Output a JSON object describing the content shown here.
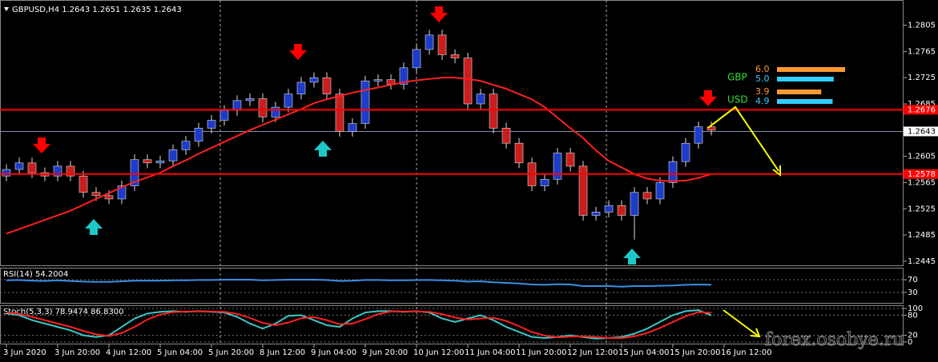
{
  "chart_data": [
    {
      "type": "candlestick",
      "title": "GBPUSD,H4  1.2643 1.2651 1.2635 1.2643",
      "categories": [
        "3 Jun 2020",
        null,
        null,
        null,
        "3 Jun 20:00",
        null,
        null,
        null,
        "4 Jun 12:00",
        null,
        null,
        null,
        "5 Jun 04:00",
        null,
        null,
        null,
        "5 Jun 20:00",
        null,
        null,
        null,
        "8 Jun 12:00",
        null,
        null,
        null,
        "9 Jun 04:00",
        null,
        null,
        null,
        "9 Jun 20:00",
        null,
        null,
        null,
        "10 Jun 12:00",
        null,
        null,
        null,
        "11 Jun 04:00",
        null,
        null,
        null,
        "11 Jun 20:00",
        null,
        null,
        null,
        "12 Jun 12:00",
        null,
        null,
        null,
        "15 Jun 04:00",
        null,
        null,
        null,
        "15 Jun 20:00",
        null,
        null,
        null,
        "16 Jun 12:00"
      ],
      "open": [
        1.2575,
        1.2585,
        1.2595,
        1.258,
        1.2575,
        1.259,
        1.2575,
        1.255,
        1.2545,
        1.254,
        1.256,
        1.26,
        1.2595,
        1.2598,
        1.2615,
        1.2628,
        1.2648,
        1.266,
        1.2675,
        1.269,
        1.2693,
        1.2665,
        1.268,
        1.27,
        1.2718,
        1.2725,
        1.27,
        1.2643,
        1.2655,
        1.272,
        1.2722,
        1.2715,
        1.274,
        1.2768,
        1.279,
        1.276,
        1.2755,
        1.2685,
        1.27,
        1.2648,
        1.2625,
        1.2595,
        1.256,
        1.257,
        1.261,
        1.259,
        1.2515,
        1.252,
        1.253,
        1.2515,
        1.255,
        1.254,
        1.2565,
        1.2597,
        1.2625,
        1.265,
        null
      ],
      "high": [
        1.2593,
        1.2603,
        1.2603,
        1.2588,
        1.2598,
        1.2598,
        1.2583,
        1.2558,
        1.2553,
        1.2568,
        1.2608,
        1.2608,
        1.2606,
        1.2623,
        1.2636,
        1.2656,
        1.2668,
        1.2683,
        1.2698,
        1.2701,
        1.2701,
        1.2688,
        1.2708,
        1.2726,
        1.2733,
        1.2733,
        1.2708,
        1.2663,
        1.2728,
        1.273,
        1.273,
        1.2748,
        1.2776,
        1.2798,
        1.2798,
        1.2768,
        1.2763,
        1.2708,
        1.2708,
        1.2656,
        1.2633,
        1.2603,
        1.2578,
        1.2618,
        1.2618,
        1.2598,
        1.2528,
        1.2538,
        1.2538,
        1.2558,
        1.2558,
        1.2573,
        1.2605,
        1.2633,
        1.2658,
        1.2658,
        null
      ],
      "low": [
        1.2567,
        1.2577,
        1.2572,
        1.2567,
        1.2567,
        1.2567,
        1.2542,
        1.2537,
        1.2532,
        1.2532,
        1.2552,
        1.2587,
        1.2587,
        1.259,
        1.2607,
        1.262,
        1.264,
        1.2652,
        1.2667,
        1.2682,
        1.2657,
        1.2657,
        1.2672,
        1.2692,
        1.271,
        1.2692,
        1.2635,
        1.2635,
        1.2647,
        1.2712,
        1.2707,
        1.2707,
        1.2732,
        1.276,
        1.2752,
        1.2747,
        1.2677,
        1.2677,
        1.264,
        1.2617,
        1.2587,
        1.2552,
        1.2552,
        1.2562,
        1.2582,
        1.2507,
        1.2507,
        1.2512,
        1.2507,
        1.2478,
        1.2532,
        1.2532,
        1.2557,
        1.2589,
        1.2617,
        1.2637,
        null
      ],
      "close": [
        1.2585,
        1.2595,
        1.258,
        1.2575,
        1.259,
        1.2575,
        1.255,
        1.2545,
        1.254,
        1.256,
        1.26,
        1.2595,
        1.2598,
        1.2615,
        1.2628,
        1.2648,
        1.266,
        1.2675,
        1.269,
        1.2693,
        1.2665,
        1.268,
        1.27,
        1.2718,
        1.2725,
        1.27,
        1.2643,
        1.2655,
        1.272,
        1.2722,
        1.2715,
        1.274,
        1.2768,
        1.279,
        1.276,
        1.2755,
        1.2685,
        1.27,
        1.2648,
        1.2625,
        1.2595,
        1.256,
        1.257,
        1.261,
        1.259,
        1.2515,
        1.252,
        1.253,
        1.2515,
        1.255,
        1.254,
        1.2565,
        1.2597,
        1.2625,
        1.265,
        1.2645,
        null
      ],
      "up_color": "#1e3cc8",
      "down_color": "#c81e1e",
      "lines": [
        {
          "color": "#ff2020",
          "values": [
            1.2487,
            1.2494,
            1.2501,
            1.2508,
            1.2515,
            1.2522,
            1.2531,
            1.254,
            1.2549,
            1.2558,
            1.2566,
            1.2573,
            1.258,
            1.259,
            1.2599,
            1.2609,
            1.2618,
            1.2627,
            1.2636,
            1.2645,
            1.2653,
            1.2661,
            1.2669,
            1.2677,
            1.2686,
            1.2692,
            1.2697,
            1.2702,
            1.2706,
            1.271,
            1.2714,
            1.2718,
            1.2721,
            1.2723,
            1.2725,
            1.2725,
            1.2723,
            1.272,
            1.2714,
            1.2708,
            1.27,
            1.2692,
            1.268,
            1.2664,
            1.2648,
            1.2633,
            1.2614,
            1.2598,
            1.2588,
            1.2578,
            1.2571,
            1.2568,
            1.2567,
            1.2568,
            1.2572,
            1.2578,
            null
          ]
        }
      ],
      "levels": [
        {
          "value": 1.2676,
          "label": "1.2676"
        },
        {
          "value": 1.2578,
          "label": "1.2578"
        }
      ],
      "level_color": "#ff0000",
      "current_price": {
        "value": 1.2643,
        "label": "1.2643"
      },
      "ylim": [
        1.244,
        1.2841
      ],
      "yticks": [
        1.2805,
        1.2765,
        1.2725,
        1.2685,
        1.2605,
        1.2565,
        1.2525,
        1.2485,
        1.2445
      ],
      "currency_strength": [
        {
          "label": "GBP",
          "values": [
            6.0,
            5.0
          ],
          "value_labels": [
            "6.0",
            "5.0"
          ]
        },
        {
          "label": "USD",
          "values": [
            3.9,
            4.9
          ],
          "value_labels": [
            "3.9",
            "4.9"
          ]
        }
      ],
      "strength_colors": [
        "#ff9933",
        "#33ccff"
      ],
      "watermark": "forex.osobye.ru"
    },
    {
      "type": "line",
      "title": "RSI(14) 54.2004",
      "color": "#3a8ee6",
      "values": [
        68,
        69,
        67,
        66,
        68,
        66,
        64,
        63,
        63,
        65,
        67,
        67,
        67,
        68,
        68,
        69,
        69,
        70,
        70,
        70,
        68,
        69,
        70,
        70,
        70,
        69,
        66,
        67,
        69,
        69,
        68,
        68,
        69,
        69,
        68,
        67,
        64,
        65,
        62,
        60,
        58,
        55,
        54,
        56,
        55,
        50,
        50,
        50,
        48,
        50,
        50,
        51,
        52,
        54,
        55,
        54.2004,
        null
      ],
      "ylim": [
        0,
        100
      ],
      "yticks": [
        70,
        30
      ]
    },
    {
      "type": "line",
      "title": "Stoch(5,3,3) 78.9474 86.8300",
      "series": [
        {
          "color": "#3cc8c8",
          "values": [
            85,
            80,
            65,
            55,
            45,
            35,
            20,
            15,
            20,
            45,
            70,
            85,
            90,
            92,
            90,
            92,
            90,
            88,
            75,
            55,
            40,
            55,
            78,
            80,
            65,
            50,
            45,
            70,
            88,
            92,
            92,
            90,
            92,
            88,
            70,
            60,
            70,
            80,
            65,
            45,
            30,
            15,
            12,
            15,
            20,
            15,
            10,
            12,
            15,
            25,
            40,
            60,
            80,
            92,
            95,
            78.9474,
            null
          ]
        },
        {
          "color": "#ff2020",
          "values": [
            88,
            84,
            75,
            65,
            55,
            45,
            33,
            23,
            18,
            27,
            45,
            67,
            82,
            89,
            91,
            91,
            91,
            90,
            84,
            72,
            57,
            50,
            58,
            71,
            74,
            65,
            53,
            55,
            68,
            83,
            91,
            91,
            91,
            90,
            83,
            73,
            67,
            70,
            72,
            63,
            47,
            30,
            19,
            14,
            16,
            17,
            15,
            12,
            12,
            17,
            27,
            42,
            60,
            77,
            89,
            86.83,
            null
          ]
        }
      ],
      "ylim": [
        0,
        100
      ],
      "yticks": [
        100,
        80,
        20,
        0
      ]
    }
  ]
}
